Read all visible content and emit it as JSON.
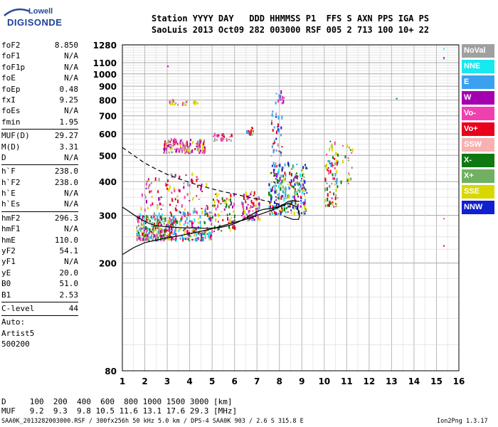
{
  "logo": {
    "line1": "Lowell",
    "line2": "DIGISONDE"
  },
  "header": {
    "row1": "Station YYYY DAY   DDD HHMMSS P1  FFS S AXN PPS IGA PS",
    "row2": "SaoLuis 2013 Oct09 282 003000 RSF 005 2 713 100 10+ 22"
  },
  "params_groups": [
    [
      [
        "foF2",
        "8.850"
      ],
      [
        "foF1",
        "N/A"
      ],
      [
        "foF1p",
        "N/A"
      ],
      [
        "foE",
        "N/A"
      ],
      [
        "foEp",
        "0.48"
      ],
      [
        "fxI",
        "9.25"
      ],
      [
        "foEs",
        "N/A"
      ],
      [
        "fmin",
        "1.95"
      ]
    ],
    [
      [
        "MUF(D)",
        "29.27"
      ],
      [
        "M(D)",
        "3.31"
      ],
      [
        "D",
        "N/A"
      ]
    ],
    [
      [
        "h`F",
        "238.0"
      ],
      [
        "h`F2",
        "238.0"
      ],
      [
        "h`E",
        "N/A"
      ],
      [
        "h`Es",
        "N/A"
      ]
    ],
    [
      [
        "hmF2",
        "296.3"
      ],
      [
        "hmF1",
        "N/A"
      ],
      [
        "hmE",
        "110.0"
      ],
      [
        "yF2",
        "54.1"
      ],
      [
        "yF1",
        "N/A"
      ],
      [
        "yE",
        "20.0"
      ],
      [
        "B0",
        "51.0"
      ],
      [
        "B1",
        "2.53"
      ]
    ],
    [
      [
        "C-level",
        "44"
      ]
    ]
  ],
  "auto": {
    "line1": "Auto:",
    "line2": "Artist5",
    "line3": "500200"
  },
  "footer": {
    "d_row": "D     100  200  400  600  800 1000 1500 3000 [km]",
    "muf_row": "MUF   9.2  9.3  9.8 10.5 11.6 13.1 17.6 29.3 [MHz]",
    "file_info": "SAA0K_2013282003000.RSF / 300fx256h 50 kHz 5.0 km / DPS-4 SAA0K 903 / 2.6 S 315.8 E",
    "version": "Ion2Png 1.3.17"
  },
  "legend": [
    {
      "label": "NoVal",
      "color": "#a0a0a0"
    },
    {
      "label": "NNE",
      "color": "#18e8f0"
    },
    {
      "label": "E",
      "color": "#3ca0f0"
    },
    {
      "label": "W",
      "color": "#a400b0"
    },
    {
      "label": "Vo-",
      "color": "#f040b0"
    },
    {
      "label": "Vo+",
      "color": "#e8001c"
    },
    {
      "label": "SSW",
      "color": "#f8b0b0"
    },
    {
      "label": "X-",
      "color": "#107810"
    },
    {
      "label": "X+",
      "color": "#70b060"
    },
    {
      "label": "SSE",
      "color": "#d8d800"
    },
    {
      "label": "NNW",
      "color": "#1020d0"
    }
  ],
  "chart_data": {
    "type": "scatter",
    "xlabel": "",
    "ylabel": "",
    "x_range": [
      1,
      16
    ],
    "x_ticks": [
      1,
      2,
      3,
      4,
      5,
      6,
      7,
      8,
      9,
      10,
      11,
      12,
      13,
      14,
      15,
      16
    ],
    "y_scale": "log",
    "y_range": [
      80,
      1280
    ],
    "y_ticks": [
      80,
      200,
      300,
      400,
      500,
      600,
      700,
      800,
      900,
      1000,
      1100,
      1280
    ],
    "grid": true,
    "series": [
      {
        "name": "",
        "style": "solid",
        "x": [
          1,
          1.5,
          2,
          2.5,
          3,
          3.5,
          4,
          4.5,
          5,
          5.5,
          6,
          6.5,
          7,
          7.5,
          8,
          8.4,
          8.8,
          8.9,
          8.85,
          8.6,
          8.2
        ],
        "y": [
          215,
          228,
          238,
          243,
          248,
          252,
          257,
          262,
          268,
          275,
          283,
          290,
          300,
          310,
          322,
          333,
          322,
          298,
          290,
          290,
          298
        ]
      },
      {
        "name": "",
        "style": "dashed",
        "x": [
          1,
          1.5,
          2,
          2.5,
          3,
          3.5,
          4,
          4.5,
          5,
          5.5,
          6,
          6.5,
          7,
          7.5,
          8,
          8.5
        ],
        "y": [
          535,
          500,
          468,
          445,
          425,
          410,
          397,
          386,
          376,
          367,
          360,
          352,
          345,
          338,
          330,
          322
        ]
      },
      {
        "name": "",
        "style": "solid",
        "x": [
          1,
          1.3,
          1.6,
          1.9,
          2.2,
          2.5,
          2.8,
          3.1,
          3.4,
          3.7,
          4.0,
          4.3,
          4.6,
          4.9,
          5.2,
          5.5,
          5.8,
          6.1,
          6.4,
          6.7,
          7.0,
          7.3,
          7.6,
          7.9,
          8.2,
          8.4,
          8.6,
          8.9
        ],
        "y": [
          322,
          310,
          298,
          288,
          280,
          275,
          273,
          272,
          271,
          270,
          270,
          270,
          269,
          269,
          270,
          272,
          276,
          282,
          290,
          300,
          310,
          316,
          318,
          322,
          330,
          338,
          340,
          338
        ]
      }
    ],
    "echo_clusters": [
      {
        "x": [
          1.6,
          3.2
        ],
        "y": [
          240,
          300
        ],
        "n": 260,
        "colors": [
          "#e8001c",
          "#f040b0",
          "#a400b0",
          "#3ca0f0",
          "#d8d800",
          "#107810",
          "#70b060",
          "#18e8f0",
          "#a0a0a0"
        ]
      },
      {
        "x": [
          3.0,
          5.0
        ],
        "y": [
          240,
          310
        ],
        "n": 200,
        "colors": [
          "#e8001c",
          "#f040b0",
          "#a400b0",
          "#d8d800",
          "#107810",
          "#3ca0f0",
          "#18e8f0"
        ]
      },
      {
        "x": [
          1.8,
          4.8
        ],
        "y": [
          310,
          420
        ],
        "n": 90,
        "colors": [
          "#e8001c",
          "#f040b0",
          "#a400b0",
          "#d8d800",
          "#a0a0a0"
        ]
      },
      {
        "x": [
          5.0,
          6.0
        ],
        "y": [
          260,
          360
        ],
        "n": 70,
        "colors": [
          "#e8001c",
          "#f040b0",
          "#d8d800",
          "#a400b0",
          "#107810"
        ]
      },
      {
        "x": [
          2.8,
          4.7
        ],
        "y": [
          505,
          565
        ],
        "n": 130,
        "colors": [
          "#d8d800",
          "#a400b0",
          "#f040b0",
          "#a0a0a0",
          "#e8001c"
        ]
      },
      {
        "x": [
          5.0,
          5.9
        ],
        "y": [
          560,
          590
        ],
        "n": 25,
        "colors": [
          "#f040b0",
          "#e8001c",
          "#a0a0a0"
        ]
      },
      {
        "x": [
          3.0,
          4.4
        ],
        "y": [
          760,
          785
        ],
        "n": 25,
        "colors": [
          "#d8d800",
          "#f040b0",
          "#a0a0a0"
        ]
      },
      {
        "x": [
          6.3,
          7.1
        ],
        "y": [
          285,
          360
        ],
        "n": 90,
        "colors": [
          "#e8001c",
          "#f040b0",
          "#a400b0",
          "#3ca0f0",
          "#d8d800"
        ]
      },
      {
        "x": [
          6.5,
          6.8
        ],
        "y": [
          590,
          640
        ],
        "n": 15,
        "colors": [
          "#d8d800",
          "#e8001c",
          "#3ca0f0"
        ]
      },
      {
        "x": [
          7.5,
          9.2
        ],
        "y": [
          300,
          460
        ],
        "n": 260,
        "colors": [
          "#3ca0f0",
          "#18e8f0",
          "#1020d0",
          "#a400b0",
          "#e8001c",
          "#d8d800",
          "#107810",
          "#70b060"
        ]
      },
      {
        "x": [
          7.6,
          8.1
        ],
        "y": [
          450,
          720
        ],
        "n": 40,
        "colors": [
          "#3ca0f0",
          "#1020d0",
          "#e8001c",
          "#a0a0a0"
        ]
      },
      {
        "x": [
          7.8,
          8.2
        ],
        "y": [
          770,
          850
        ],
        "n": 14,
        "colors": [
          "#a400b0",
          "#f040b0",
          "#3ca0f0"
        ]
      },
      {
        "x": [
          10.0,
          10.6
        ],
        "y": [
          320,
          560
        ],
        "n": 80,
        "colors": [
          "#d8d800",
          "#f040b0",
          "#e8001c",
          "#107810",
          "#3ca0f0",
          "#70b060"
        ]
      },
      {
        "x": [
          10.7,
          11.3
        ],
        "y": [
          380,
          560
        ],
        "n": 20,
        "colors": [
          "#107810",
          "#70b060",
          "#f040b0",
          "#d8d800"
        ]
      }
    ],
    "outliers": [
      {
        "x": 15.3,
        "y": 1230,
        "color": "#18e8f0"
      },
      {
        "x": 15.3,
        "y": 1140,
        "color": "#e8001c"
      },
      {
        "x": 15.3,
        "y": 1130,
        "color": "#3ca0f0"
      },
      {
        "x": 15.3,
        "y": 290,
        "color": "#f040b0"
      },
      {
        "x": 15.3,
        "y": 230,
        "color": "#e8001c"
      },
      {
        "x": 13.2,
        "y": 805,
        "color": "#107810"
      },
      {
        "x": 3.0,
        "y": 1060,
        "color": "#a400b0"
      },
      {
        "x": 5.5,
        "y": 590,
        "color": "#a0a0a0"
      }
    ]
  }
}
